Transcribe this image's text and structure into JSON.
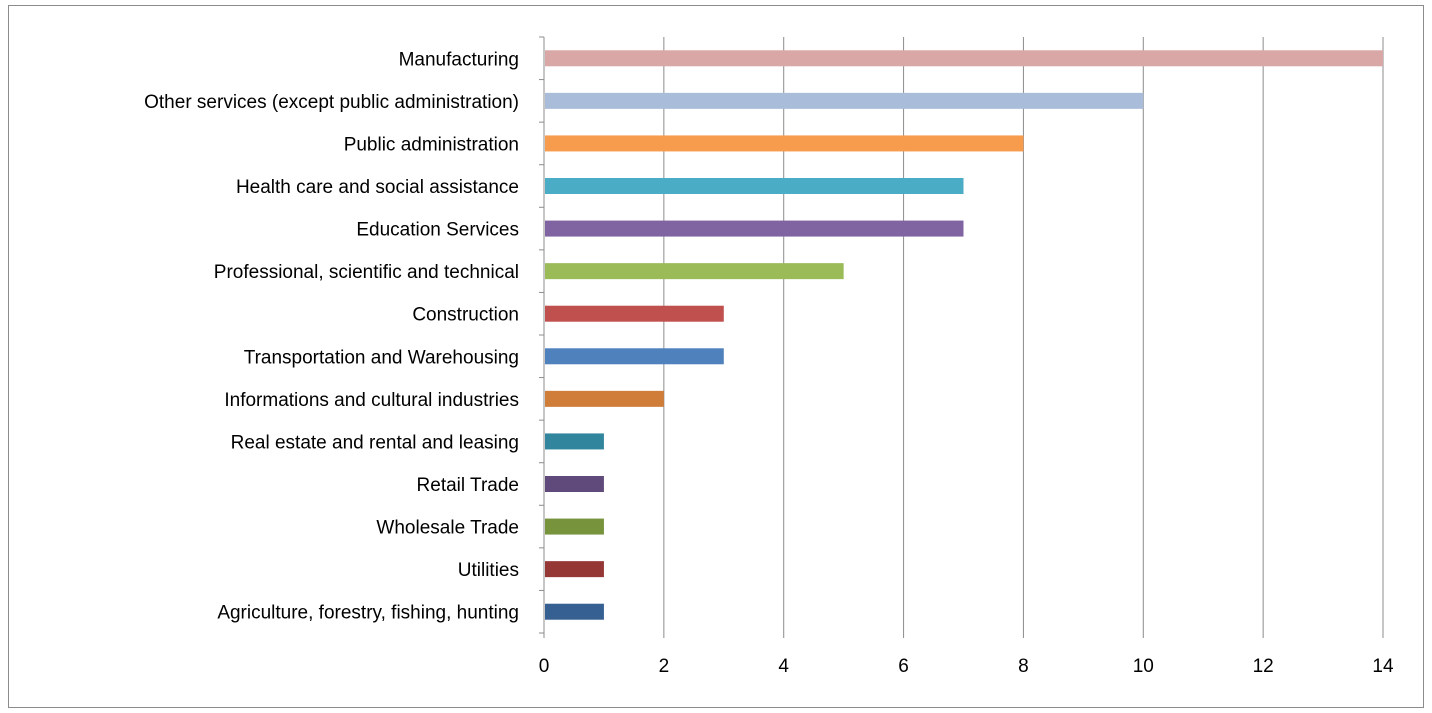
{
  "chart_data": {
    "type": "bar",
    "orientation": "horizontal",
    "title": "",
    "xlabel": "",
    "ylabel": "",
    "xlim": [
      0,
      14
    ],
    "x_ticks": [
      0,
      2,
      4,
      6,
      8,
      10,
      12,
      14
    ],
    "grid": "vertical major gridlines on",
    "legend": "none",
    "categories": [
      "Manufacturing",
      "Other services (except public administration)",
      "Public administration",
      "Health care and social assistance",
      "Education Services",
      "Professional, scientific and technical",
      "Construction",
      "Transportation and Warehousing",
      "Informations and cultural industries",
      "Real estate and rental and leasing",
      "Retail Trade",
      "Wholesale Trade",
      "Utilities",
      "Agriculture, forestry, fishing, hunting"
    ],
    "values": [
      14,
      10,
      8,
      7,
      7,
      5,
      3,
      3,
      2,
      1,
      1,
      1,
      1,
      1
    ],
    "colors": [
      "#d9a8a6",
      "#a9bcd9",
      "#f79b4c",
      "#4bacc6",
      "#8064a2",
      "#9bbb59",
      "#c0504d",
      "#4f81bd",
      "#d07d3a",
      "#31859c",
      "#604a7b",
      "#77933c",
      "#953735",
      "#376092"
    ]
  }
}
